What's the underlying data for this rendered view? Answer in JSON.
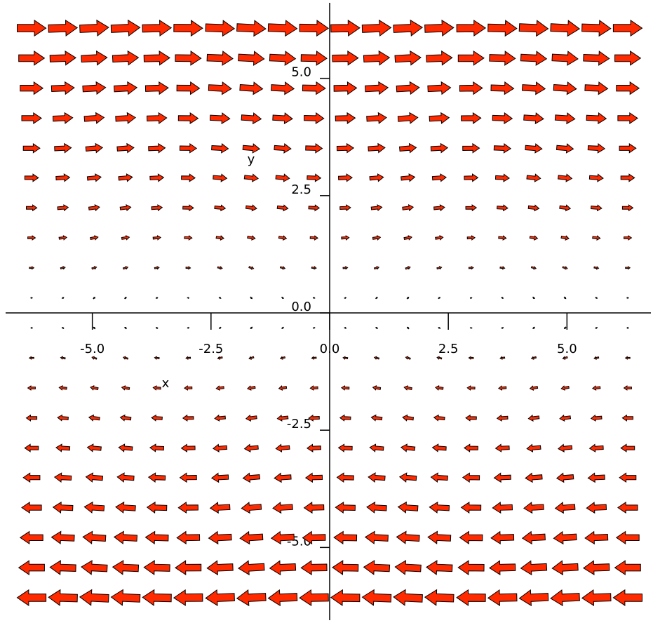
{
  "chart_data": {
    "type": "quiver",
    "xlabel": "x",
    "ylabel": "y",
    "x": [
      -6.28,
      -5.62,
      -4.96,
      -4.3,
      -3.64,
      -2.98,
      -2.31,
      -1.65,
      -0.99,
      -0.33,
      0.33,
      0.99,
      1.65,
      2.31,
      2.98,
      3.64,
      4.3,
      4.96,
      5.62,
      6.28
    ],
    "y": [
      6.07,
      5.43,
      4.79,
      4.15,
      3.51,
      2.88,
      2.24,
      1.6,
      0.96,
      0.32,
      -0.32,
      -0.96,
      -1.6,
      -2.24,
      -2.88,
      -3.51,
      -4.15,
      -4.79,
      -5.43,
      -6.07
    ],
    "dx": [
      6.07,
      5.43,
      4.79,
      4.15,
      3.51,
      2.88,
      2.24,
      1.6,
      0.96,
      0.32,
      -0.32,
      -0.96,
      -1.6,
      -2.24,
      -2.88,
      -3.51,
      -4.15,
      -4.79,
      -5.43,
      -6.07
    ],
    "dy": [
      0.0,
      0.19,
      0.29,
      0.27,
      0.14,
      -0.05,
      -0.22,
      -0.3,
      -0.25,
      -0.1,
      0.1,
      0.25,
      0.3,
      0.22,
      0.05,
      -0.14,
      -0.27,
      -0.29,
      -0.19,
      0.0
    ],
    "color": "#ff2a00",
    "xlim": [
      -6.65,
      6.65
    ],
    "ylim": [
      -6.55,
      6.55
    ],
    "xticks": [
      {
        "value": -5,
        "label": "-5.0"
      },
      {
        "value": -2.5,
        "label": "-2.5"
      },
      {
        "value": 0,
        "label": "0.0"
      },
      {
        "value": 2.5,
        "label": "2.5"
      },
      {
        "value": 5,
        "label": "5.0"
      }
    ],
    "yticks": [
      {
        "value": -5,
        "label": "-5.0"
      },
      {
        "value": -2.5,
        "label": "-2.5"
      },
      {
        "value": 0,
        "label": "0.0"
      },
      {
        "value": 2.5,
        "label": "2.5"
      },
      {
        "value": 5,
        "label": "5.0"
      }
    ]
  }
}
